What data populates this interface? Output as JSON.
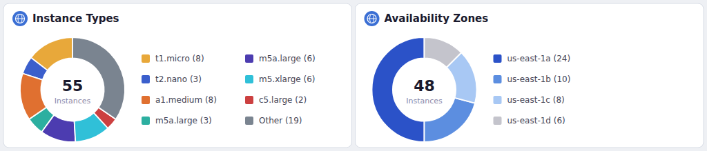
{
  "chart_data": [
    {
      "type": "donut",
      "title": "Instance Types",
      "annotations": [
        "55",
        "Instances"
      ],
      "categories": [
        "t1.micro (8)",
        "t2.nano (3)",
        "a1.medium (8)",
        "m5a.large (3)",
        "m5a.large (6)",
        "m5.xlarge (6)",
        "c5.large (2)",
        "Other (19)"
      ],
      "values": [
        8,
        3,
        8,
        3,
        6,
        6,
        2,
        19
      ],
      "colors": [
        "#E8A83A",
        "#3B5FCC",
        "#E07030",
        "#2CAFA0",
        "#4C3CB0",
        "#30C0D8",
        "#CC4040",
        "#7A8490"
      ],
      "legend": "right"
    },
    {
      "type": "donut",
      "title": "Availability Zones",
      "annotations": [
        "48",
        "Instances"
      ],
      "categories": [
        "us-east-1a (24)",
        "us-east-1b (10)",
        "us-east-1c (8)",
        "us-east-1d (6)"
      ],
      "values": [
        24,
        10,
        8,
        6
      ],
      "colors": [
        "#2B52C8",
        "#5C8EE0",
        "#A8C8F4",
        "#C4C4CC"
      ],
      "legend": "right"
    }
  ]
}
